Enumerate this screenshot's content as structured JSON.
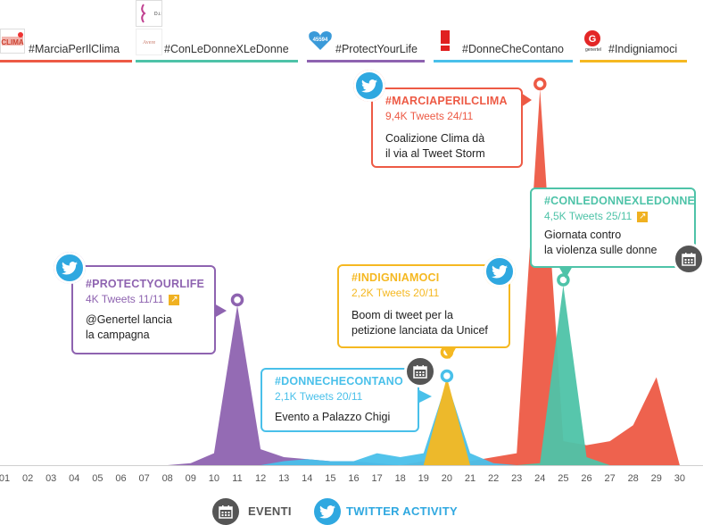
{
  "legend": [
    {
      "label": "#MarciaPerIlClima",
      "color": "#ed5a45",
      "logo": "clima-logo"
    },
    {
      "label": "#ConLeDonneXLeDonne",
      "color": "#4ec3a8",
      "logo": "avere-logo"
    },
    {
      "label": "#ProtectYourLife",
      "color": "#8e63b0",
      "logo": "45594-logo"
    },
    {
      "label": "#DonneCheContano",
      "color": "#49c0ea",
      "logo": "exclamation-logo"
    },
    {
      "label": "#Indigniamoci",
      "color": "#f5b821",
      "logo": "genertel-logo"
    }
  ],
  "callouts": {
    "marcia": {
      "title": "#MARCIAPERILCLIMA",
      "sub": "9,4K Tweets 24/11",
      "desc1": "Coalizione Clima dà",
      "desc2": "il via al Tweet Storm"
    },
    "conledonne": {
      "title": "#CONLEDONNEXLEDONNE",
      "sub": "4,5K Tweets 25/11",
      "desc1": "Giornata contro",
      "desc2": "la violenza sulle donne"
    },
    "protect": {
      "title": "#PROTECTYOURLIFE",
      "sub": "4K Tweets 11/11",
      "desc1": "@Genertel lancia",
      "desc2": "la campagna"
    },
    "indigniamoci": {
      "title": "#INDIGNIAMOCI",
      "sub": "2,2K Tweets 20/11",
      "desc1": "Boom di tweet per la",
      "desc2": "petizione lanciata da Unicef"
    },
    "donne": {
      "title": "#DONNECHECONTANO",
      "sub": "2,1K Tweets 20/11",
      "desc1": "Evento a Palazzo Chigi"
    }
  },
  "bottom_legend": {
    "events": "EVENTI",
    "twitter": "TWITTER ACTIVITY"
  },
  "chart_data": {
    "type": "area",
    "x": [
      "01",
      "02",
      "03",
      "04",
      "05",
      "06",
      "07",
      "08",
      "09",
      "10",
      "11",
      "12",
      "13",
      "14",
      "15",
      "16",
      "17",
      "18",
      "19",
      "20",
      "21",
      "22",
      "23",
      "24",
      "25",
      "26",
      "27",
      "28",
      "29",
      "30"
    ],
    "series": [
      {
        "name": "#ProtectYourLife",
        "color": "#8e63b0",
        "values": [
          0,
          0,
          0,
          0,
          0,
          0,
          0,
          0,
          0.05,
          0.3,
          4.0,
          0.4,
          0.2,
          0.15,
          0.1,
          0.1,
          0.05,
          0,
          0,
          0,
          0,
          0,
          0,
          0,
          0,
          0,
          0,
          0,
          0,
          0
        ]
      },
      {
        "name": "#DonneCheContano",
        "color": "#49c0ea",
        "values": [
          0,
          0,
          0,
          0,
          0,
          0,
          0,
          0,
          0,
          0,
          0,
          0,
          0.1,
          0.15,
          0.1,
          0.1,
          0.3,
          0.2,
          0.3,
          2.1,
          0.3,
          0.05,
          0,
          0,
          0,
          0,
          0,
          0,
          0,
          0
        ]
      },
      {
        "name": "#Indigniamoci",
        "color": "#f5b821",
        "values": [
          0,
          0,
          0,
          0,
          0,
          0,
          0,
          0,
          0,
          0,
          0,
          0,
          0,
          0,
          0,
          0,
          0,
          0,
          0,
          2.2,
          0,
          0,
          0,
          0,
          0,
          0,
          0,
          0,
          0,
          0
        ]
      },
      {
        "name": "#MarciaPerIlClima",
        "color": "#ed5a45",
        "values": [
          0,
          0,
          0,
          0,
          0,
          0,
          0,
          0,
          0,
          0,
          0,
          0,
          0,
          0,
          0,
          0,
          0,
          0,
          0.1,
          0.2,
          0.1,
          0.2,
          0.3,
          9.4,
          0.6,
          0.5,
          0.6,
          1.0,
          2.2,
          0
        ]
      },
      {
        "name": "#ConLeDonneXLeDonne",
        "color": "#4ec3a8",
        "values": [
          0,
          0,
          0,
          0,
          0,
          0,
          0,
          0,
          0,
          0,
          0,
          0,
          0,
          0,
          0,
          0,
          0,
          0,
          0,
          0,
          0,
          0,
          0,
          0.05,
          4.5,
          0.2,
          0,
          0,
          0,
          0
        ]
      }
    ],
    "unit": "K Tweets"
  }
}
